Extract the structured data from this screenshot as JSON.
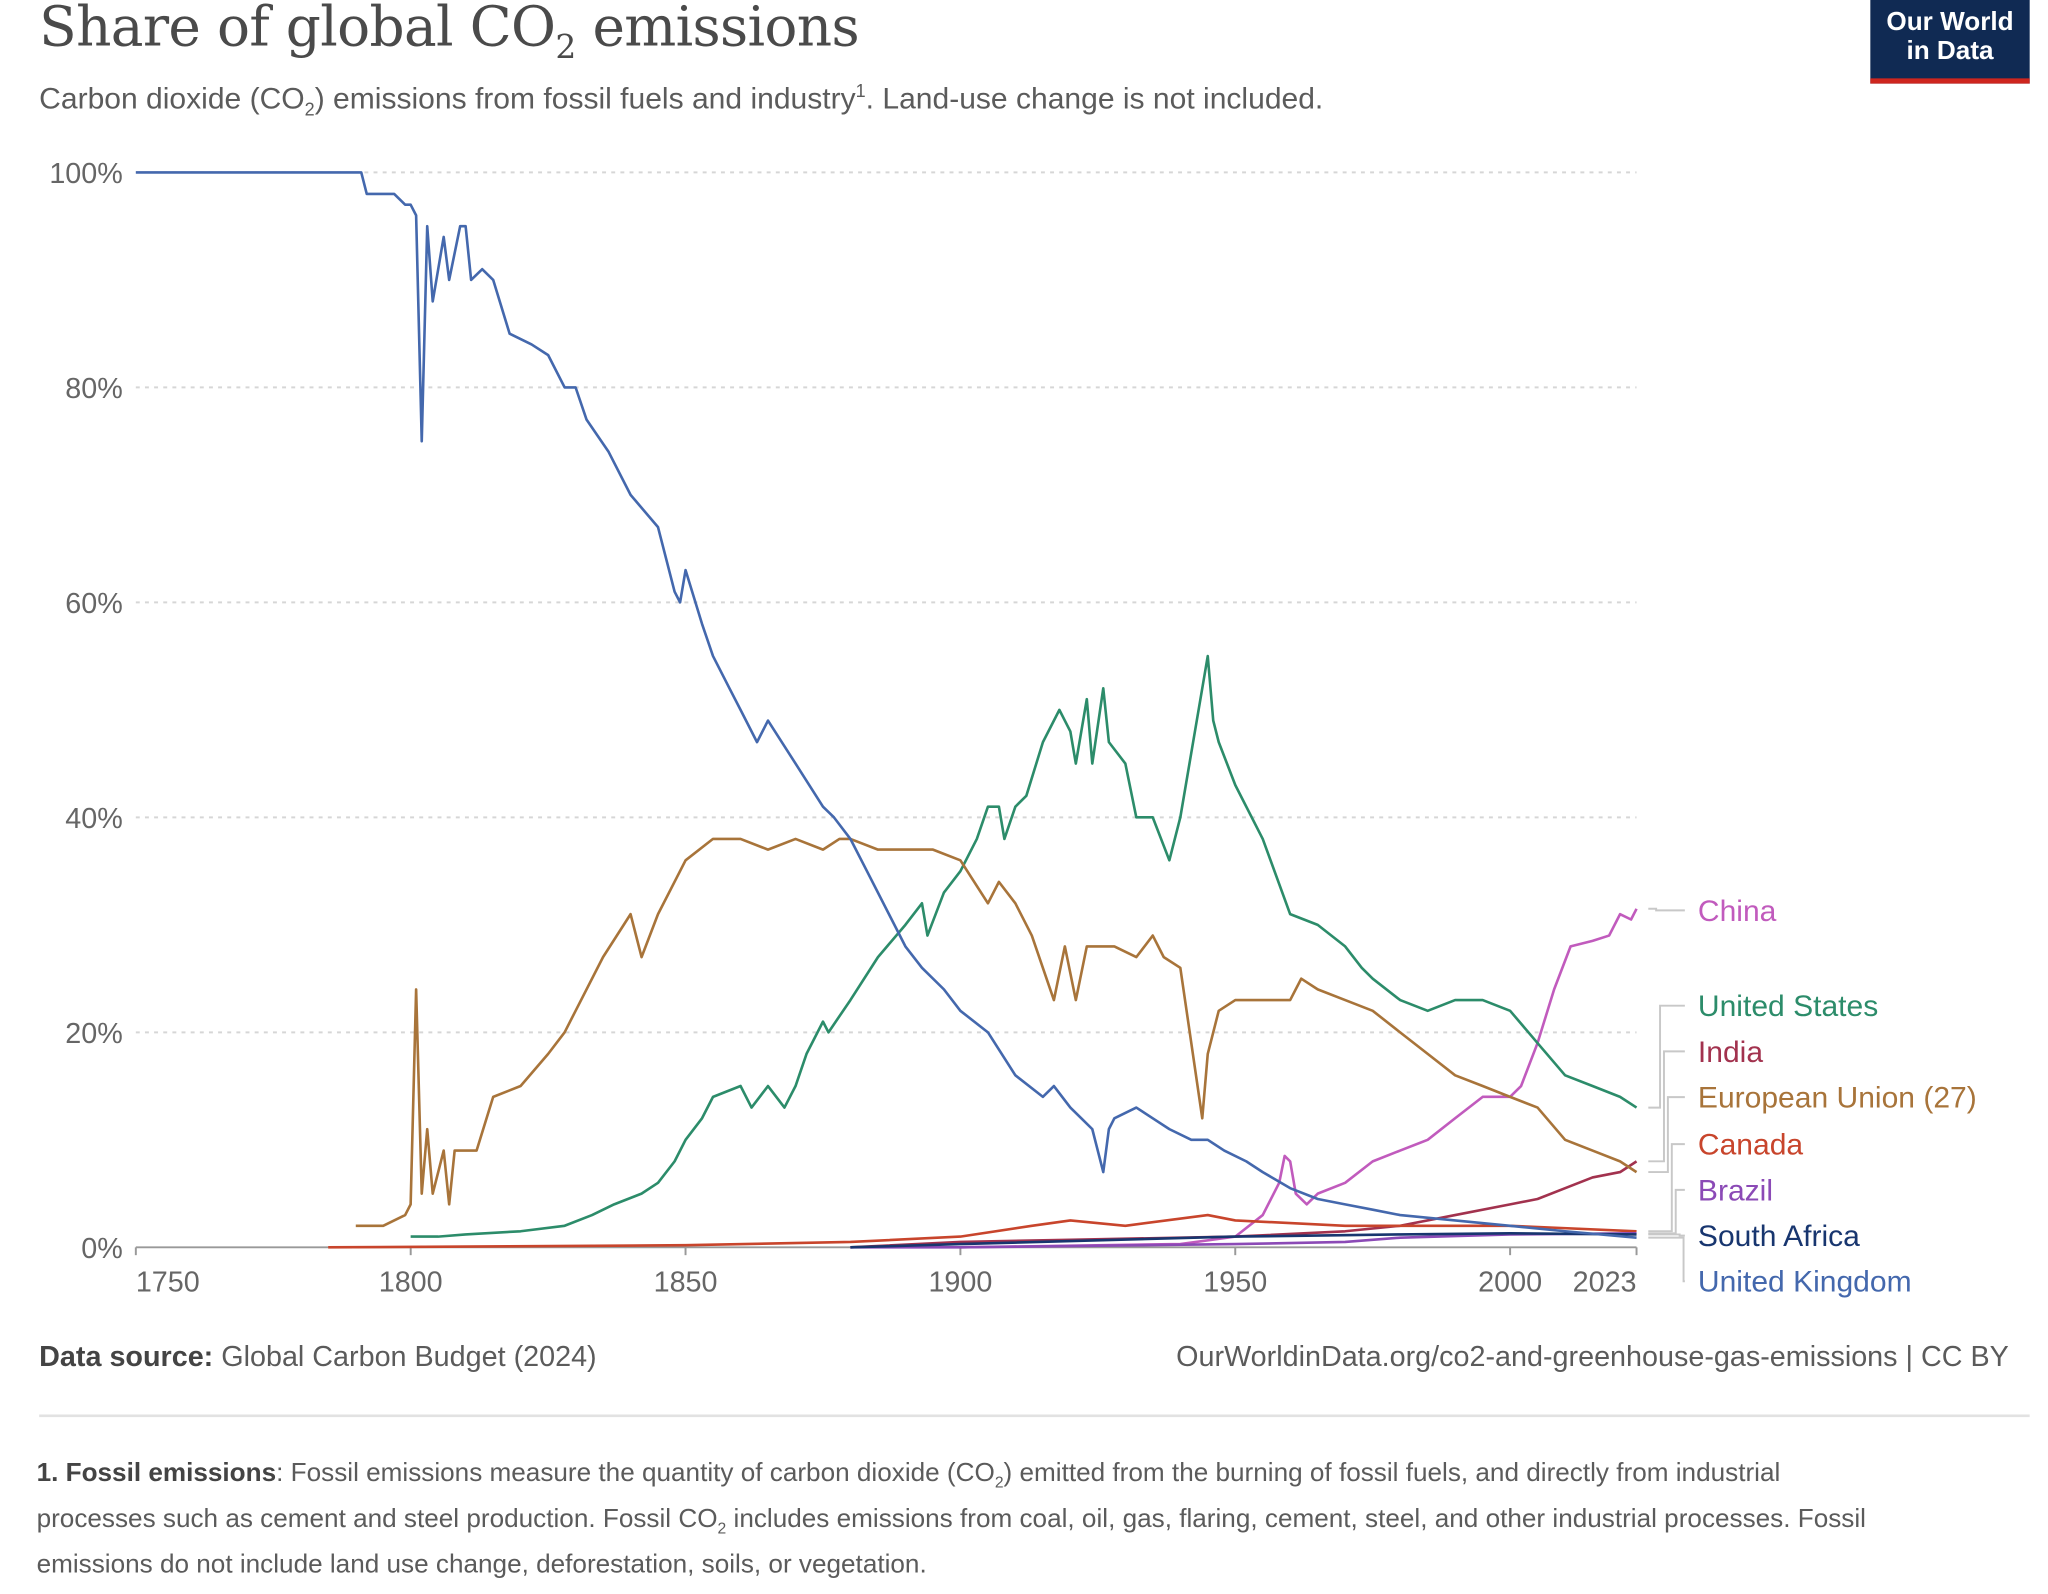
{
  "header": {
    "title_main": "Share of global CO",
    "title_sub": "2",
    "title_end": " emissions",
    "subtitle_a": "Carbon dioxide (CO",
    "subtitle_sub": "2",
    "subtitle_b": ") emissions from fossil fuels and industry",
    "subtitle_sup": "1",
    "subtitle_c": ". Land-use change is not included.",
    "logo_line1": "Our World",
    "logo_line2": "in Data"
  },
  "footer": {
    "source_label": "Data source:",
    "source_value": " Global Carbon Budget (2024)",
    "url": "OurWorldinData.org/co2-and-greenhouse-gas-emissions | CC BY",
    "note_label": "1. Fossil emissions",
    "note_a": ": Fossil emissions measure the quantity of carbon dioxide (CO",
    "note_sub1": "2",
    "note_b": ") emitted from the burning of fossil fuels, and directly from industrial processes such as cement and steel production. Fossil CO",
    "note_sub2": "2",
    "note_c": " includes emissions from coal, oil, gas, flaring, cement, steel, and other industrial processes. Fossil emissions do not include land use change, deforestation, soils, or vegetation."
  },
  "chart_data": {
    "type": "line",
    "title": "Share of global CO2 emissions",
    "xlabel": "",
    "ylabel": "",
    "xlim": [
      1750,
      2023
    ],
    "ylim": [
      0,
      100
    ],
    "x_ticks": [
      "1750",
      "1800",
      "1850",
      "1900",
      "1950",
      "2000",
      "2023"
    ],
    "x_tick_values": [
      1750,
      1800,
      1850,
      1900,
      1950,
      2000,
      2023
    ],
    "y_ticks": [
      "0%",
      "20%",
      "40%",
      "60%",
      "80%",
      "100%"
    ],
    "y_tick_values": [
      0,
      20,
      40,
      60,
      80,
      100
    ],
    "grid": "horizontal dotted",
    "legend": "right (line-end labels)",
    "series": [
      {
        "name": "China",
        "color": "#c15bbd",
        "label_pos": 697,
        "points": [
          [
            1900,
            0
          ],
          [
            1940,
            0.3
          ],
          [
            1950,
            1
          ],
          [
            1955,
            3
          ],
          [
            1958,
            6
          ],
          [
            1959,
            8.5
          ],
          [
            1960,
            8
          ],
          [
            1961,
            5
          ],
          [
            1963,
            4
          ],
          [
            1965,
            5
          ],
          [
            1970,
            6
          ],
          [
            1975,
            8
          ],
          [
            1980,
            9
          ],
          [
            1985,
            10
          ],
          [
            1990,
            12
          ],
          [
            1995,
            14
          ],
          [
            1998,
            14
          ],
          [
            2000,
            14
          ],
          [
            2002,
            15
          ],
          [
            2005,
            19
          ],
          [
            2008,
            24
          ],
          [
            2011,
            28
          ],
          [
            2015,
            28.5
          ],
          [
            2018,
            29
          ],
          [
            2020,
            31
          ],
          [
            2022,
            30.5
          ],
          [
            2023,
            31.5
          ]
        ]
      },
      {
        "name": "United States",
        "color": "#2c8c6a",
        "label_pos": 770,
        "points": [
          [
            1800,
            1
          ],
          [
            1805,
            1
          ],
          [
            1810,
            1.2
          ],
          [
            1820,
            1.5
          ],
          [
            1828,
            2
          ],
          [
            1833,
            3
          ],
          [
            1837,
            4
          ],
          [
            1842,
            5
          ],
          [
            1845,
            6
          ],
          [
            1848,
            8
          ],
          [
            1850,
            10
          ],
          [
            1853,
            12
          ],
          [
            1855,
            14
          ],
          [
            1860,
            15
          ],
          [
            1862,
            13
          ],
          [
            1865,
            15
          ],
          [
            1868,
            13
          ],
          [
            1870,
            15
          ],
          [
            1872,
            18
          ],
          [
            1875,
            21
          ],
          [
            1876,
            20
          ],
          [
            1880,
            23
          ],
          [
            1885,
            27
          ],
          [
            1890,
            30
          ],
          [
            1893,
            32
          ],
          [
            1894,
            29
          ],
          [
            1897,
            33
          ],
          [
            1900,
            35
          ],
          [
            1903,
            38
          ],
          [
            1905,
            41
          ],
          [
            1907,
            41
          ],
          [
            1908,
            38
          ],
          [
            1910,
            41
          ],
          [
            1912,
            42
          ],
          [
            1915,
            47
          ],
          [
            1918,
            50
          ],
          [
            1920,
            48
          ],
          [
            1921,
            45
          ],
          [
            1923,
            51
          ],
          [
            1924,
            45
          ],
          [
            1926,
            52
          ],
          [
            1927,
            47
          ],
          [
            1930,
            45
          ],
          [
            1932,
            40
          ],
          [
            1935,
            40
          ],
          [
            1938,
            36
          ],
          [
            1940,
            40
          ],
          [
            1942,
            46
          ],
          [
            1945,
            55
          ],
          [
            1946,
            49
          ],
          [
            1947,
            47
          ],
          [
            1950,
            43
          ],
          [
            1955,
            38
          ],
          [
            1960,
            31
          ],
          [
            1965,
            30
          ],
          [
            1970,
            28
          ],
          [
            1973,
            26
          ],
          [
            1975,
            25
          ],
          [
            1980,
            23
          ],
          [
            1985,
            22
          ],
          [
            1990,
            23
          ],
          [
            1995,
            23
          ],
          [
            2000,
            22
          ],
          [
            2005,
            19
          ],
          [
            2010,
            16
          ],
          [
            2015,
            15
          ],
          [
            2020,
            14
          ],
          [
            2023,
            13
          ]
        ]
      },
      {
        "name": "India",
        "color": "#a2324e",
        "label_pos": 805,
        "points": [
          [
            1880,
            0
          ],
          [
            1900,
            0.5
          ],
          [
            1920,
            0.7
          ],
          [
            1950,
            1
          ],
          [
            1970,
            1.5
          ],
          [
            1980,
            2
          ],
          [
            1990,
            3
          ],
          [
            2000,
            4
          ],
          [
            2005,
            4.5
          ],
          [
            2010,
            5.5
          ],
          [
            2015,
            6.5
          ],
          [
            2020,
            7
          ],
          [
            2023,
            8
          ]
        ]
      },
      {
        "name": "European Union (27)",
        "color": "#a8743a",
        "label_pos": 840,
        "points": [
          [
            1790,
            2
          ],
          [
            1795,
            2
          ],
          [
            1799,
            3
          ],
          [
            1800,
            4
          ],
          [
            1801,
            24
          ],
          [
            1802,
            5
          ],
          [
            1803,
            11
          ],
          [
            1804,
            5
          ],
          [
            1806,
            9
          ],
          [
            1807,
            4
          ],
          [
            1808,
            9
          ],
          [
            1810,
            9
          ],
          [
            1812,
            9
          ],
          [
            1815,
            14
          ],
          [
            1820,
            15
          ],
          [
            1825,
            18
          ],
          [
            1828,
            20
          ],
          [
            1830,
            22
          ],
          [
            1835,
            27
          ],
          [
            1840,
            31
          ],
          [
            1842,
            27
          ],
          [
            1845,
            31
          ],
          [
            1850,
            36
          ],
          [
            1855,
            38
          ],
          [
            1860,
            38
          ],
          [
            1865,
            37
          ],
          [
            1870,
            38
          ],
          [
            1875,
            37
          ],
          [
            1878,
            38
          ],
          [
            1880,
            38
          ],
          [
            1885,
            37
          ],
          [
            1890,
            37
          ],
          [
            1895,
            37
          ],
          [
            1900,
            36
          ],
          [
            1905,
            32
          ],
          [
            1907,
            34
          ],
          [
            1910,
            32
          ],
          [
            1913,
            29
          ],
          [
            1917,
            23
          ],
          [
            1919,
            28
          ],
          [
            1921,
            23
          ],
          [
            1923,
            28
          ],
          [
            1925,
            28
          ],
          [
            1928,
            28
          ],
          [
            1932,
            27
          ],
          [
            1935,
            29
          ],
          [
            1937,
            27
          ],
          [
            1940,
            26
          ],
          [
            1944,
            12
          ],
          [
            1945,
            18
          ],
          [
            1947,
            22
          ],
          [
            1950,
            23
          ],
          [
            1955,
            23
          ],
          [
            1960,
            23
          ],
          [
            1962,
            25
          ],
          [
            1965,
            24
          ],
          [
            1970,
            23
          ],
          [
            1975,
            22
          ],
          [
            1980,
            20
          ],
          [
            1985,
            18
          ],
          [
            1990,
            16
          ],
          [
            1995,
            15
          ],
          [
            2000,
            14
          ],
          [
            2005,
            13
          ],
          [
            2010,
            10
          ],
          [
            2015,
            9
          ],
          [
            2020,
            8
          ],
          [
            2023,
            7
          ]
        ]
      },
      {
        "name": "Canada",
        "color": "#c8452c",
        "label_pos": 876,
        "points": [
          [
            1785,
            0
          ],
          [
            1850,
            0.2
          ],
          [
            1880,
            0.5
          ],
          [
            1900,
            1
          ],
          [
            1913,
            2
          ],
          [
            1920,
            2.5
          ],
          [
            1930,
            2
          ],
          [
            1945,
            3
          ],
          [
            1950,
            2.5
          ],
          [
            1970,
            2
          ],
          [
            1980,
            2
          ],
          [
            2000,
            2
          ],
          [
            2023,
            1.5
          ]
        ]
      },
      {
        "name": "Brazil",
        "color": "#8b4ab6",
        "label_pos": 911,
        "points": [
          [
            1880,
            0
          ],
          [
            1900,
            0
          ],
          [
            1950,
            0.3
          ],
          [
            1970,
            0.5
          ],
          [
            1980,
            0.9
          ],
          [
            2000,
            1.2
          ],
          [
            2023,
            1.3
          ]
        ]
      },
      {
        "name": "South Africa",
        "color": "#18366f",
        "label_pos": 946,
        "points": [
          [
            1880,
            0
          ],
          [
            1900,
            0.3
          ],
          [
            1950,
            1
          ],
          [
            1980,
            1.2
          ],
          [
            2000,
            1.3
          ],
          [
            2023,
            1.2
          ]
        ]
      },
      {
        "name": "United Kingdom",
        "color": "#4468ad",
        "label_pos": 981,
        "points": [
          [
            1750,
            100
          ],
          [
            1791,
            100
          ],
          [
            1792,
            98
          ],
          [
            1797,
            98
          ],
          [
            1799,
            97
          ],
          [
            1800,
            97
          ],
          [
            1801,
            96
          ],
          [
            1802,
            75
          ],
          [
            1803,
            95
          ],
          [
            1804,
            88
          ],
          [
            1806,
            94
          ],
          [
            1807,
            90
          ],
          [
            1809,
            95
          ],
          [
            1810,
            95
          ],
          [
            1811,
            90
          ],
          [
            1813,
            91
          ],
          [
            1815,
            90
          ],
          [
            1818,
            85
          ],
          [
            1822,
            84
          ],
          [
            1825,
            83
          ],
          [
            1828,
            80
          ],
          [
            1830,
            80
          ],
          [
            1832,
            77
          ],
          [
            1836,
            74
          ],
          [
            1840,
            70
          ],
          [
            1845,
            67
          ],
          [
            1848,
            61
          ],
          [
            1849,
            60
          ],
          [
            1850,
            63
          ],
          [
            1853,
            58
          ],
          [
            1855,
            55
          ],
          [
            1858,
            52
          ],
          [
            1860,
            50
          ],
          [
            1863,
            47
          ],
          [
            1865,
            49
          ],
          [
            1870,
            45
          ],
          [
            1875,
            41
          ],
          [
            1877,
            40
          ],
          [
            1880,
            38
          ],
          [
            1883,
            35
          ],
          [
            1887,
            31
          ],
          [
            1890,
            28
          ],
          [
            1893,
            26
          ],
          [
            1897,
            24
          ],
          [
            1900,
            22
          ],
          [
            1905,
            20
          ],
          [
            1910,
            16
          ],
          [
            1915,
            14
          ],
          [
            1917,
            15
          ],
          [
            1920,
            13
          ],
          [
            1922,
            12
          ],
          [
            1924,
            11
          ],
          [
            1926,
            7
          ],
          [
            1927,
            11
          ],
          [
            1928,
            12
          ],
          [
            1932,
            13
          ],
          [
            1935,
            12
          ],
          [
            1938,
            11
          ],
          [
            1942,
            10
          ],
          [
            1945,
            10
          ],
          [
            1948,
            9
          ],
          [
            1952,
            8
          ],
          [
            1955,
            7
          ],
          [
            1960,
            5.5
          ],
          [
            1965,
            4.5
          ],
          [
            1970,
            4
          ],
          [
            1975,
            3.5
          ],
          [
            1980,
            3
          ],
          [
            1990,
            2.5
          ],
          [
            2000,
            2
          ],
          [
            2010,
            1.5
          ],
          [
            2023,
            0.9
          ]
        ]
      }
    ]
  }
}
